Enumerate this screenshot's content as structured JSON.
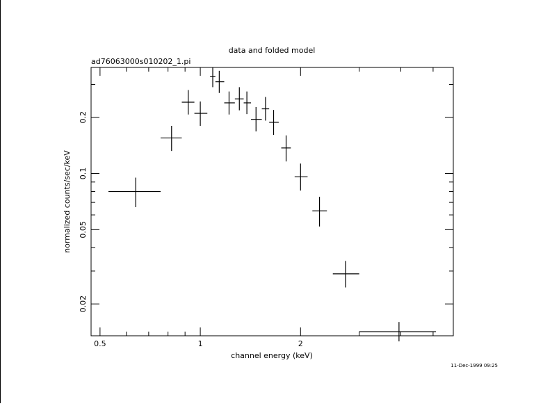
{
  "chart_data": {
    "type": "scatter",
    "title": "data and folded model",
    "subtitle": "ad76063000s010202_1.pi",
    "xlabel": "channel energy (keV)",
    "ylabel": "normalized counts/sec/keV",
    "x_scale": "log",
    "y_scale": "log",
    "xlim": [
      0.47,
      5.75
    ],
    "ylim": [
      0.0135,
      0.37
    ],
    "x_ticks": [
      {
        "value": 0.5,
        "label": "0.5"
      },
      {
        "value": 1,
        "label": "1"
      },
      {
        "value": 2,
        "label": "2"
      }
    ],
    "y_ticks": [
      {
        "value": 0.02,
        "label": "0.02"
      },
      {
        "value": 0.05,
        "label": "0.05"
      },
      {
        "value": 0.1,
        "label": "0.1"
      },
      {
        "value": 0.2,
        "label": "0.2"
      }
    ],
    "grid": false,
    "legend": "none",
    "series": [
      {
        "points": [
          {
            "x": 0.64,
            "xlo": 0.53,
            "xhi": 0.76,
            "y": 0.08,
            "ylo": 0.066,
            "yhi": 0.095
          },
          {
            "x": 0.82,
            "xlo": 0.76,
            "xhi": 0.88,
            "y": 0.155,
            "ylo": 0.132,
            "yhi": 0.18
          },
          {
            "x": 0.92,
            "xlo": 0.88,
            "xhi": 0.96,
            "y": 0.241,
            "ylo": 0.207,
            "yhi": 0.28
          },
          {
            "x": 1.0,
            "xlo": 0.96,
            "xhi": 1.05,
            "y": 0.21,
            "ylo": 0.18,
            "yhi": 0.243
          },
          {
            "x": 1.09,
            "xlo": 1.07,
            "xhi": 1.11,
            "y": 0.33,
            "ylo": 0.29,
            "yhi": 0.37
          },
          {
            "x": 1.14,
            "xlo": 1.11,
            "xhi": 1.18,
            "y": 0.31,
            "ylo": 0.27,
            "yhi": 0.355
          },
          {
            "x": 1.22,
            "xlo": 1.18,
            "xhi": 1.27,
            "y": 0.239,
            "ylo": 0.207,
            "yhi": 0.275
          },
          {
            "x": 1.31,
            "xlo": 1.27,
            "xhi": 1.35,
            "y": 0.251,
            "ylo": 0.218,
            "yhi": 0.29
          },
          {
            "x": 1.38,
            "xlo": 1.35,
            "xhi": 1.42,
            "y": 0.239,
            "ylo": 0.208,
            "yhi": 0.275
          },
          {
            "x": 1.47,
            "xlo": 1.42,
            "xhi": 1.53,
            "y": 0.195,
            "ylo": 0.168,
            "yhi": 0.227
          },
          {
            "x": 1.57,
            "xlo": 1.53,
            "xhi": 1.61,
            "y": 0.222,
            "ylo": 0.192,
            "yhi": 0.257
          },
          {
            "x": 1.66,
            "xlo": 1.61,
            "xhi": 1.72,
            "y": 0.188,
            "ylo": 0.161,
            "yhi": 0.219
          },
          {
            "x": 1.81,
            "xlo": 1.75,
            "xhi": 1.87,
            "y": 0.137,
            "ylo": 0.116,
            "yhi": 0.16
          },
          {
            "x": 2.0,
            "xlo": 1.92,
            "xhi": 2.1,
            "y": 0.096,
            "ylo": 0.081,
            "yhi": 0.113
          },
          {
            "x": 2.28,
            "xlo": 2.17,
            "xhi": 2.4,
            "y": 0.063,
            "ylo": 0.052,
            "yhi": 0.075
          },
          {
            "x": 2.73,
            "xlo": 2.5,
            "xhi": 3.0,
            "y": 0.029,
            "ylo": 0.0245,
            "yhi": 0.034
          },
          {
            "x": 3.95,
            "xlo": 3.0,
            "xhi": 5.1,
            "y": 0.0142,
            "ylo": 0.0126,
            "yhi": 0.016
          }
        ]
      }
    ]
  },
  "footer": {
    "timestamp": "11-Dec-1999 09:25"
  }
}
